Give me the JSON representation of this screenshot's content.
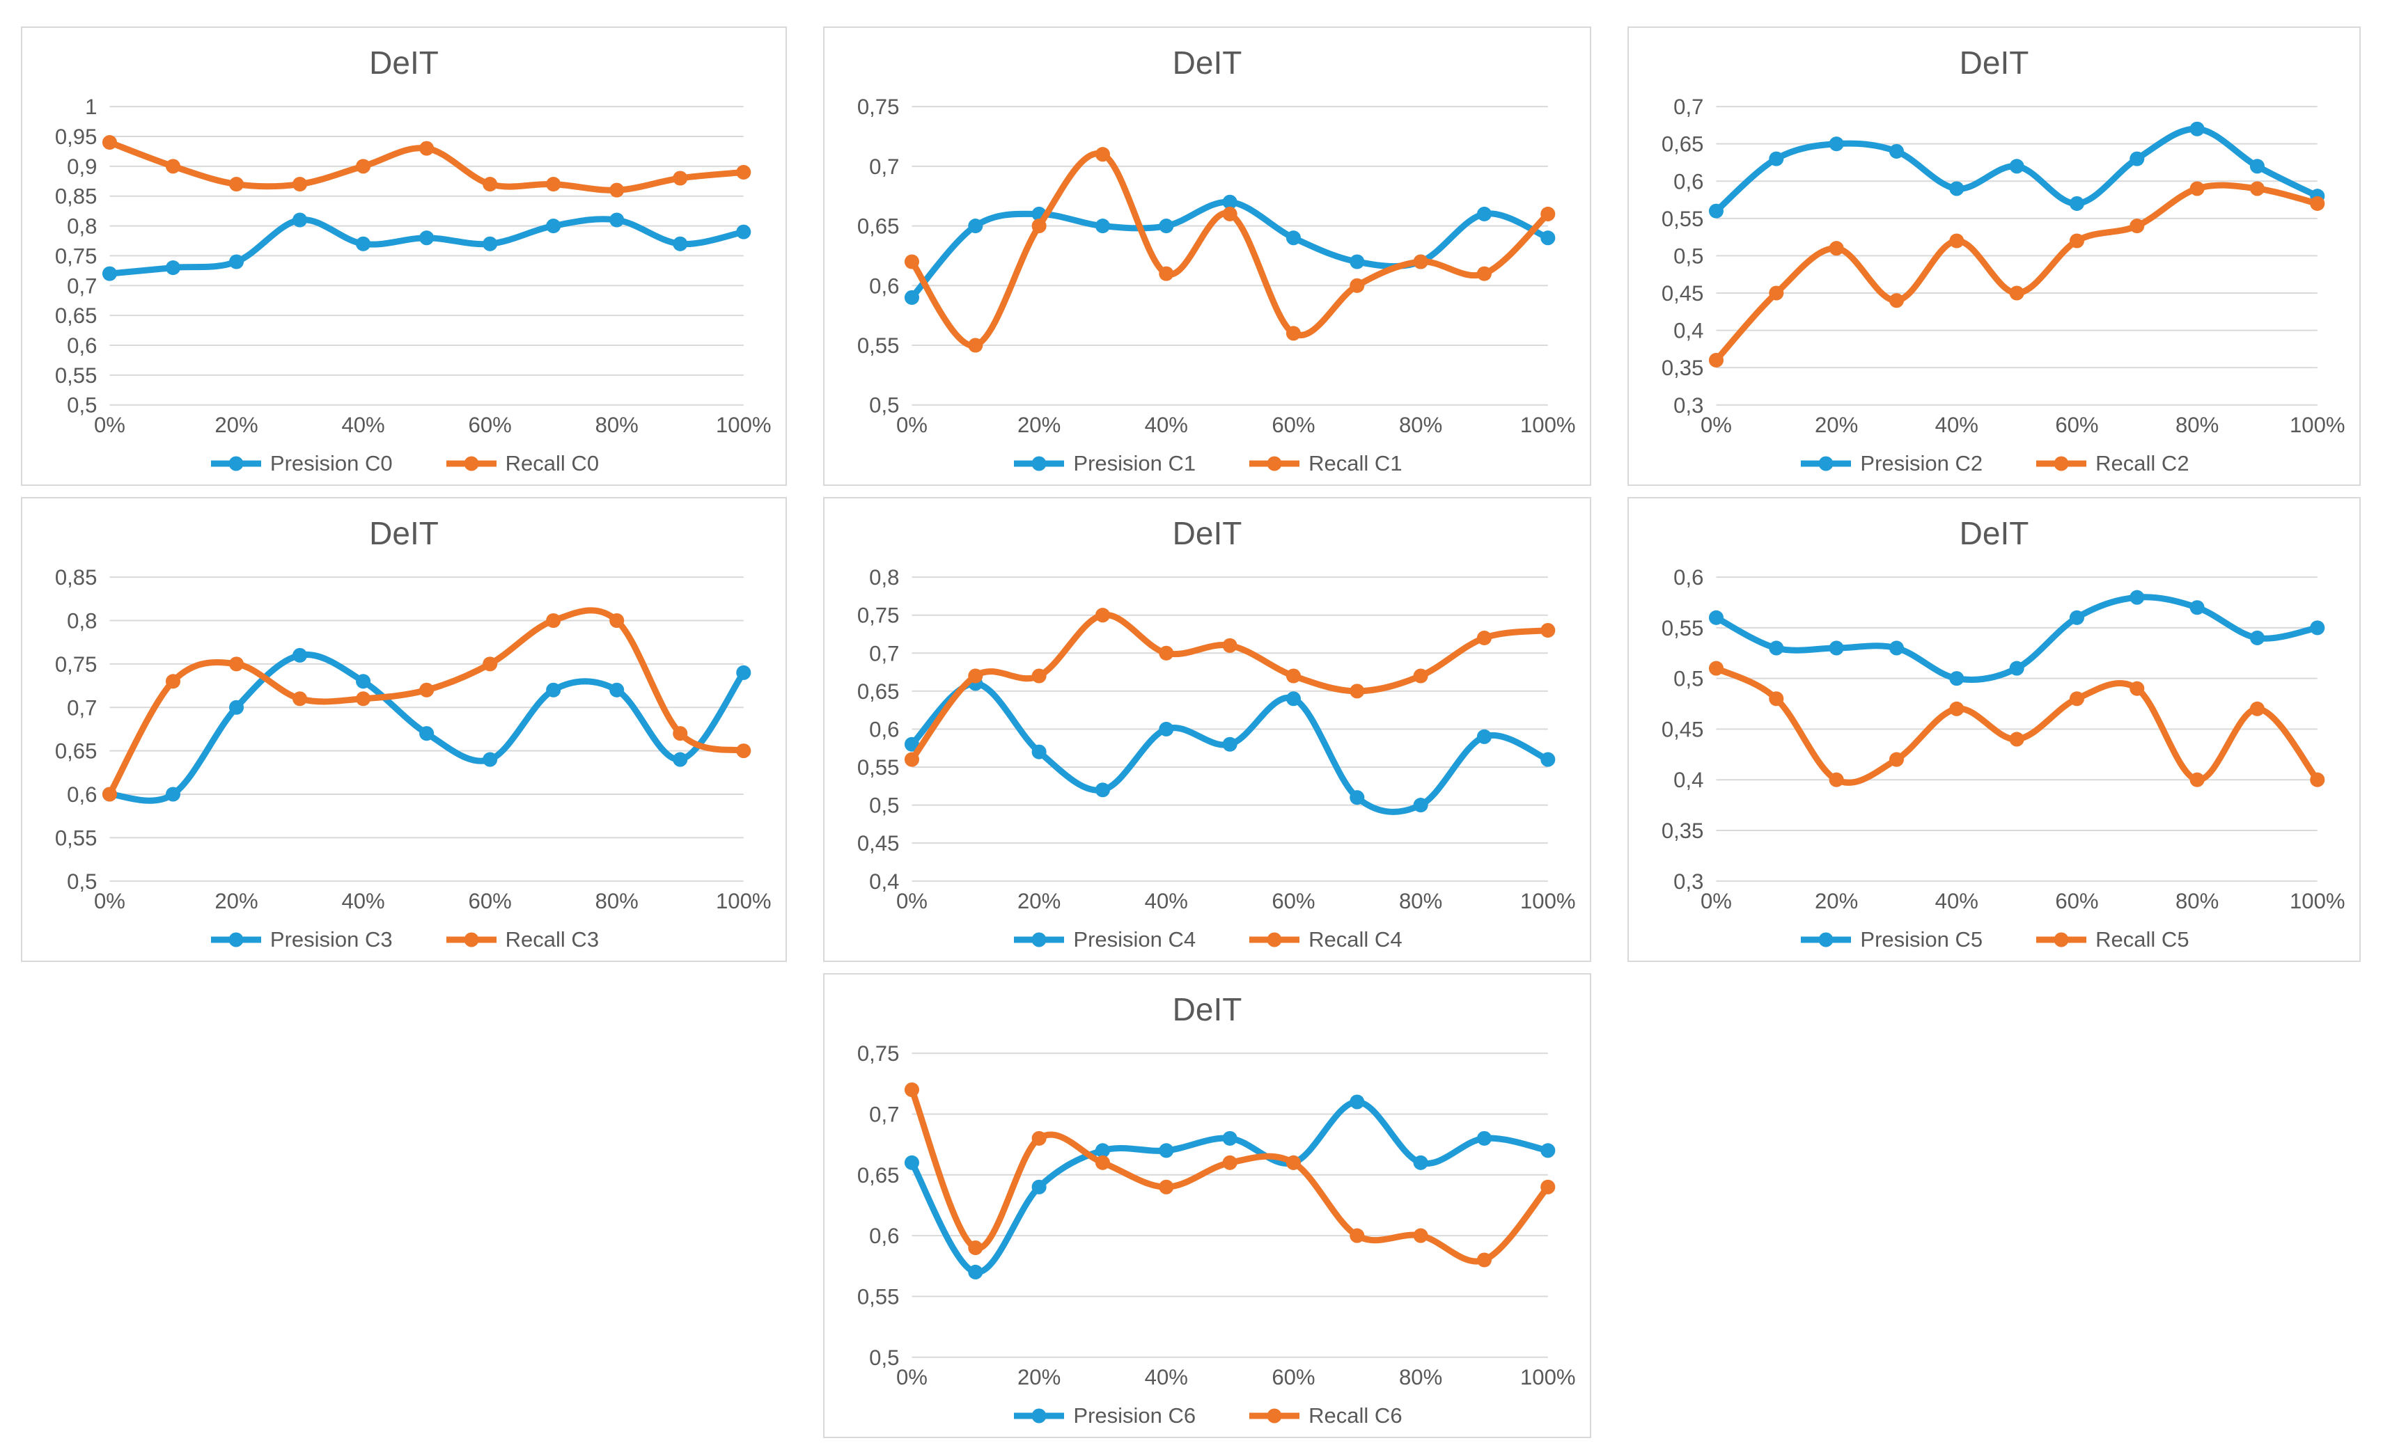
{
  "figure": {
    "chart_count": 7,
    "chart_title_shared": "DeIT"
  },
  "palette": {
    "precision_blue": "#1F9BD7",
    "recall_orange": "#EE7628",
    "gridline_gray": "#D9D9D9",
    "text_gray": "#595959",
    "chart_border_gray": "#D9D9D9"
  },
  "chart_data": [
    {
      "type": "line",
      "title": "DeIT",
      "smooth": true,
      "marker": "circle",
      "grid": "horizontal",
      "legend_position": "bottom",
      "x": [
        0,
        10,
        20,
        30,
        40,
        50,
        60,
        70,
        80,
        90,
        100
      ],
      "x_tick_labels": [
        "0%",
        "20%",
        "40%",
        "60%",
        "80%",
        "100%"
      ],
      "ylim": [
        0.5,
        1.0
      ],
      "y_step": 0.05,
      "y_tick_labels": [
        "1",
        "0,95",
        "0,9",
        "0,85",
        "0,8",
        "0,75",
        "0,7",
        "0,65",
        "0,6",
        "0,55",
        "0,5"
      ],
      "series": [
        {
          "name": "Presision C0",
          "color": "#1F9BD7",
          "values": [
            0.72,
            0.73,
            0.74,
            0.81,
            0.77,
            0.78,
            0.77,
            0.8,
            0.81,
            0.77,
            0.79
          ]
        },
        {
          "name": "Recall C0",
          "color": "#EE7628",
          "values": [
            0.94,
            0.9,
            0.87,
            0.87,
            0.9,
            0.93,
            0.87,
            0.87,
            0.86,
            0.88,
            0.89
          ]
        }
      ]
    },
    {
      "type": "line",
      "title": "DeIT",
      "smooth": true,
      "marker": "circle",
      "grid": "horizontal",
      "legend_position": "bottom",
      "x": [
        0,
        10,
        20,
        30,
        40,
        50,
        60,
        70,
        80,
        90,
        100
      ],
      "x_tick_labels": [
        "0%",
        "20%",
        "40%",
        "60%",
        "80%",
        "100%"
      ],
      "ylim": [
        0.5,
        0.75
      ],
      "y_step": 0.05,
      "y_tick_labels": [
        "0,75",
        "0,7",
        "0,65",
        "0,6",
        "0,55",
        "0,5"
      ],
      "series": [
        {
          "name": "Presision C1",
          "color": "#1F9BD7",
          "values": [
            0.59,
            0.65,
            0.66,
            0.65,
            0.65,
            0.67,
            0.64,
            0.62,
            0.62,
            0.66,
            0.64
          ]
        },
        {
          "name": "Recall C1",
          "color": "#EE7628",
          "values": [
            0.62,
            0.55,
            0.65,
            0.71,
            0.61,
            0.66,
            0.56,
            0.6,
            0.62,
            0.61,
            0.66
          ]
        }
      ]
    },
    {
      "type": "line",
      "title": "DeIT",
      "smooth": true,
      "marker": "circle",
      "grid": "horizontal",
      "legend_position": "bottom",
      "x": [
        0,
        10,
        20,
        30,
        40,
        50,
        60,
        70,
        80,
        90,
        100
      ],
      "x_tick_labels": [
        "0%",
        "20%",
        "40%",
        "60%",
        "80%",
        "100%"
      ],
      "ylim": [
        0.3,
        0.7
      ],
      "y_step": 0.05,
      "y_tick_labels": [
        "0,7",
        "0,65",
        "0,6",
        "0,55",
        "0,5",
        "0,45",
        "0,4",
        "0,35",
        "0,3"
      ],
      "series": [
        {
          "name": "Presision C2",
          "color": "#1F9BD7",
          "values": [
            0.56,
            0.63,
            0.65,
            0.64,
            0.59,
            0.62,
            0.57,
            0.63,
            0.67,
            0.62,
            0.58
          ]
        },
        {
          "name": "Recall C2",
          "color": "#EE7628",
          "values": [
            0.36,
            0.45,
            0.51,
            0.44,
            0.52,
            0.45,
            0.52,
            0.54,
            0.59,
            0.59,
            0.57
          ]
        }
      ]
    },
    {
      "type": "line",
      "title": "DeIT",
      "smooth": true,
      "marker": "circle",
      "grid": "horizontal",
      "legend_position": "bottom",
      "x": [
        0,
        10,
        20,
        30,
        40,
        50,
        60,
        70,
        80,
        90,
        100
      ],
      "x_tick_labels": [
        "0%",
        "20%",
        "40%",
        "60%",
        "80%",
        "100%"
      ],
      "ylim": [
        0.5,
        0.85
      ],
      "y_step": 0.05,
      "y_tick_labels": [
        "0,85",
        "0,8",
        "0,75",
        "0,7",
        "0,65",
        "0,6",
        "0,55",
        "0,5"
      ],
      "series": [
        {
          "name": "Presision C3",
          "color": "#1F9BD7",
          "values": [
            0.6,
            0.6,
            0.7,
            0.76,
            0.73,
            0.67,
            0.64,
            0.72,
            0.72,
            0.64,
            0.74
          ]
        },
        {
          "name": "Recall C3",
          "color": "#EE7628",
          "values": [
            0.6,
            0.73,
            0.75,
            0.71,
            0.71,
            0.72,
            0.75,
            0.8,
            0.8,
            0.67,
            0.65
          ]
        }
      ]
    },
    {
      "type": "line",
      "title": "DeIT",
      "smooth": true,
      "marker": "circle",
      "grid": "horizontal",
      "legend_position": "bottom",
      "x": [
        0,
        10,
        20,
        30,
        40,
        50,
        60,
        70,
        80,
        90,
        100
      ],
      "x_tick_labels": [
        "0%",
        "20%",
        "40%",
        "60%",
        "80%",
        "100%"
      ],
      "ylim": [
        0.4,
        0.8
      ],
      "y_step": 0.05,
      "y_tick_labels": [
        "0,8",
        "0,75",
        "0,7",
        "0,65",
        "0,6",
        "0,55",
        "0,5",
        "0,45",
        "0,4"
      ],
      "series": [
        {
          "name": "Presision C4",
          "color": "#1F9BD7",
          "values": [
            0.58,
            0.66,
            0.57,
            0.52,
            0.6,
            0.58,
            0.64,
            0.51,
            0.5,
            0.59,
            0.56
          ]
        },
        {
          "name": "Recall C4",
          "color": "#EE7628",
          "values": [
            0.56,
            0.67,
            0.67,
            0.75,
            0.7,
            0.71,
            0.67,
            0.65,
            0.67,
            0.72,
            0.73
          ]
        }
      ]
    },
    {
      "type": "line",
      "title": "DeIT",
      "smooth": true,
      "marker": "circle",
      "grid": "horizontal",
      "legend_position": "bottom",
      "x": [
        0,
        10,
        20,
        30,
        40,
        50,
        60,
        70,
        80,
        90,
        100
      ],
      "x_tick_labels": [
        "0%",
        "20%",
        "40%",
        "60%",
        "80%",
        "100%"
      ],
      "ylim": [
        0.3,
        0.6
      ],
      "y_step": 0.05,
      "y_tick_labels": [
        "0,6",
        "0,55",
        "0,5",
        "0,45",
        "0,4",
        "0,35",
        "0,3"
      ],
      "series": [
        {
          "name": "Presision C5",
          "color": "#1F9BD7",
          "values": [
            0.56,
            0.53,
            0.53,
            0.53,
            0.5,
            0.51,
            0.56,
            0.58,
            0.57,
            0.54,
            0.55
          ]
        },
        {
          "name": "Recall C5",
          "color": "#EE7628",
          "values": [
            0.51,
            0.48,
            0.4,
            0.42,
            0.47,
            0.44,
            0.48,
            0.49,
            0.4,
            0.47,
            0.4
          ]
        }
      ]
    },
    {
      "type": "line",
      "title": "DeIT",
      "smooth": true,
      "marker": "circle",
      "grid": "horizontal",
      "legend_position": "bottom",
      "x": [
        0,
        10,
        20,
        30,
        40,
        50,
        60,
        70,
        80,
        90,
        100
      ],
      "x_tick_labels": [
        "0%",
        "20%",
        "40%",
        "60%",
        "80%",
        "100%"
      ],
      "ylim": [
        0.5,
        0.75
      ],
      "y_step": 0.05,
      "y_tick_labels": [
        "0,75",
        "0,7",
        "0,65",
        "0,6",
        "0,55",
        "0,5"
      ],
      "series": [
        {
          "name": "Presision C6",
          "color": "#1F9BD7",
          "values": [
            0.66,
            0.57,
            0.64,
            0.67,
            0.67,
            0.68,
            0.66,
            0.71,
            0.66,
            0.68,
            0.67
          ]
        },
        {
          "name": "Recall C6",
          "color": "#EE7628",
          "values": [
            0.72,
            0.59,
            0.68,
            0.66,
            0.64,
            0.66,
            0.66,
            0.6,
            0.6,
            0.58,
            0.64
          ]
        }
      ]
    }
  ]
}
